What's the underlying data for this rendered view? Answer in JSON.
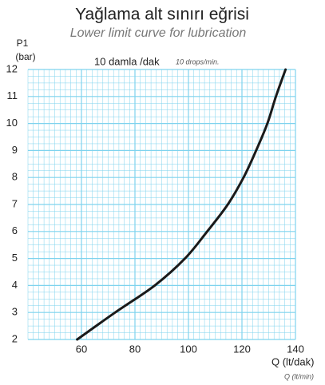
{
  "chart_data": {
    "type": "line",
    "title": "Yağlama alt sınırı eğrisi",
    "subtitle": "Lower limit curve for lubrication",
    "y_label": [
      "P1",
      "(bar)"
    ],
    "annotation": "10 damla /dak",
    "annotation_en": "10 drops/min.",
    "x_label": "Q (lt/dak)",
    "x_label_en": "Q (lt/min)",
    "x": [
      58.4,
      72.6,
      87.4,
      98.7,
      107,
      114.7,
      120.6,
      125.3,
      129.5,
      132.7,
      136.3
    ],
    "values": [
      2,
      3,
      4,
      5,
      6,
      7,
      8,
      9,
      10,
      11,
      12
    ],
    "color": "#1a1a1a",
    "grid_color": "#7fd3ee",
    "xlim": [
      40,
      140
    ],
    "xticks": [
      60,
      80,
      100,
      120,
      140
    ],
    "ylim": [
      2,
      12
    ],
    "yticks": [
      2,
      3,
      4,
      5,
      6,
      7,
      8,
      9,
      10,
      11,
      12
    ],
    "grid": true
  }
}
